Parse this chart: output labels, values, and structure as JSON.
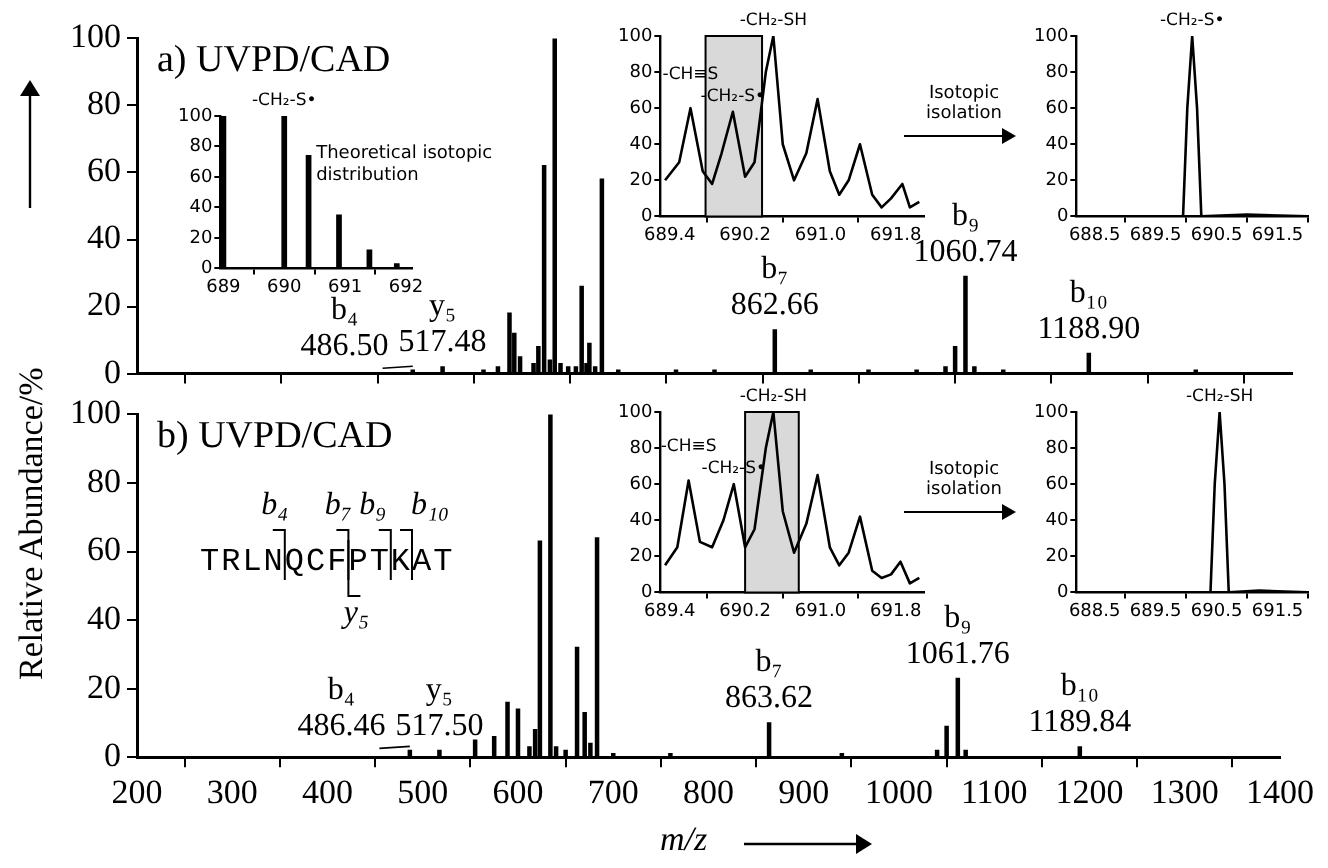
{
  "chart_data": [
    {
      "type": "bar",
      "title": "a) UVPD/CAD",
      "ylabel": "Relative Abundance/%",
      "color": "#000000",
      "x": [
        486.5,
        517.48,
        560,
        575,
        587,
        592,
        598,
        612,
        617,
        623,
        629,
        634,
        640,
        648,
        656,
        662,
        667,
        670,
        676,
        683,
        700,
        760,
        800,
        862.66,
        900,
        960,
        1010,
        1040,
        1050,
        1060.74,
        1070,
        1100,
        1188.9,
        1300
      ],
      "values": [
        1,
        2,
        1,
        2,
        18,
        12,
        5,
        3,
        8,
        62,
        4,
        100,
        3,
        2,
        2,
        26,
        3,
        9,
        2,
        58,
        1,
        1,
        1,
        13,
        1,
        1,
        1,
        2,
        8,
        29,
        2,
        1,
        6,
        1
      ],
      "xlim": [
        200,
        1400
      ],
      "ylim": [
        0,
        100
      ],
      "xticks": [
        200,
        300,
        400,
        500,
        600,
        700,
        800,
        900,
        1000,
        1100,
        1200,
        1300,
        1400
      ],
      "yticks": [
        0,
        20,
        40,
        60,
        80,
        100
      ],
      "tick_labels": "y",
      "legend": false,
      "grid": false,
      "annotations": [
        {
          "text": "b₄",
          "x": 486.5,
          "y": 1
        },
        {
          "text": "486.50",
          "x": 486.5,
          "y": 1
        },
        {
          "text": "y₅",
          "x": 517.48,
          "y": 2
        },
        {
          "text": "517.48",
          "x": 517.48,
          "y": 2
        },
        {
          "text": "b₇",
          "x": 862.66,
          "y": 13
        },
        {
          "text": "862.66",
          "x": 862.66,
          "y": 13
        },
        {
          "text": "b₉",
          "x": 1060.74,
          "y": 29
        },
        {
          "text": "1060.74",
          "x": 1060.74,
          "y": 29
        },
        {
          "text": "b₁₀",
          "x": 1188.9,
          "y": 6
        },
        {
          "text": "1188.90",
          "x": 1188.9,
          "y": 6
        }
      ]
    },
    {
      "type": "bar",
      "title": "b) UVPD/CAD",
      "xlabel": "m/z",
      "color": "#000000",
      "x": [
        486.46,
        517.5,
        555,
        575,
        589,
        600,
        612,
        618,
        623,
        634,
        640,
        650,
        662,
        670,
        676,
        683,
        700,
        760,
        863.62,
        940,
        1040,
        1050,
        1061.76,
        1070,
        1189.84
      ],
      "values": [
        2,
        2,
        5,
        6,
        16,
        14,
        3,
        8,
        63,
        100,
        3,
        2,
        32,
        13,
        4,
        64,
        1,
        1,
        10,
        1,
        2,
        9,
        23,
        2,
        3
      ],
      "xlim": [
        200,
        1400
      ],
      "ylim": [
        0,
        100
      ],
      "xticks": [
        200,
        300,
        400,
        500,
        600,
        700,
        800,
        900,
        1000,
        1100,
        1200,
        1300,
        1400
      ],
      "yticks": [
        0,
        20,
        40,
        60,
        80,
        100
      ],
      "legend": false,
      "grid": false,
      "annotations": [
        "TRLNQCFPTKAT",
        "b₄",
        "b₇",
        "b₉",
        "b₁₀",
        "y₅",
        {
          "text": "b₄",
          "x": 486.46,
          "y": 2
        },
        {
          "text": "486.46",
          "x": 486.46,
          "y": 2
        },
        {
          "text": "y₅",
          "x": 517.5,
          "y": 2
        },
        {
          "text": "517.50",
          "x": 517.5,
          "y": 2
        },
        {
          "text": "b₇",
          "x": 863.62,
          "y": 10
        },
        {
          "text": "863.62",
          "x": 863.62,
          "y": 10
        },
        {
          "text": "b₉",
          "x": 1061.76,
          "y": 23
        },
        {
          "text": "1061.76",
          "x": 1061.76,
          "y": 23
        },
        {
          "text": "b₁₀",
          "x": 1189.84,
          "y": 3
        },
        {
          "text": "1189.84",
          "x": 1189.84,
          "y": 3
        }
      ]
    },
    {
      "type": "bar",
      "color": "#000000",
      "x": [
        689.0,
        690.0,
        690.4,
        690.9,
        691.4,
        691.85
      ],
      "values": [
        100,
        100,
        74,
        35,
        12,
        3
      ],
      "xlim": [
        688.95,
        692.1
      ],
      "ylim": [
        0,
        100
      ],
      "xticks": [
        689,
        690,
        691,
        692
      ],
      "yticks": [
        0,
        20,
        40,
        60,
        80,
        100
      ],
      "legend": false,
      "grid": false,
      "annotations": [
        "Theoretical isotopic distribution",
        {
          "text": "-CH₂-S•",
          "x": 690.0,
          "y": 100
        }
      ]
    },
    {
      "type": "line",
      "color": "#000000",
      "marker": "none",
      "x": [
        689.35,
        689.5,
        689.62,
        689.75,
        689.85,
        689.95,
        690.07,
        690.2,
        690.3,
        690.42,
        690.5,
        690.6,
        690.72,
        690.85,
        690.97,
        691.1,
        691.2,
        691.3,
        691.42,
        691.55,
        691.65,
        691.75,
        691.87,
        691.95,
        692.05
      ],
      "values": [
        20,
        30,
        60,
        25,
        18,
        35,
        58,
        22,
        30,
        80,
        100,
        40,
        20,
        35,
        65,
        25,
        12,
        20,
        40,
        12,
        5,
        10,
        18,
        5,
        8
      ],
      "xlim": [
        689.3,
        692.1
      ],
      "ylim": [
        0,
        100
      ],
      "xticks": [
        689.4,
        690.2,
        {
          "value": 691,
          "label": "691.0"
        },
        691.8
      ],
      "yticks": [
        0,
        20,
        40,
        60,
        80,
        100
      ],
      "legend": false,
      "grid": false,
      "bands": [
        {
          "axis": "x",
          "from": 689.78,
          "to": 690.38,
          "color": "#d9d9d9"
        }
      ],
      "annotations": [
        {
          "text": "-CH≡S",
          "x": 689.62,
          "y": 60
        },
        {
          "text": "-CH₂-S•",
          "x": 690.07,
          "y": 58
        },
        {
          "text": "-CH₂-SH",
          "x": 690.5,
          "y": 100
        }
      ]
    },
    {
      "type": "line",
      "color": "#000000",
      "marker": "none",
      "x": [
        688.2,
        689.5,
        689.95,
        690.02,
        690.1,
        690.18,
        690.25,
        691.0,
        692.0
      ],
      "values": [
        0,
        0,
        0,
        60,
        100,
        60,
        0,
        1,
        0
      ],
      "xlim": [
        688.2,
        692.0
      ],
      "ylim": [
        0,
        100
      ],
      "xticks": [
        688.5,
        689.5,
        690.5,
        691.5
      ],
      "yticks": [
        0,
        20,
        40,
        60,
        80,
        100
      ],
      "legend": false,
      "grid": false,
      "annotations": [
        "Isotopic isolation",
        {
          "text": "-CH₂-S•",
          "x": 690.1,
          "y": 100
        }
      ]
    },
    {
      "type": "line",
      "color": "#000000",
      "marker": "none",
      "x": [
        689.35,
        689.48,
        689.6,
        689.72,
        689.85,
        689.97,
        690.08,
        690.2,
        690.3,
        690.42,
        690.5,
        690.6,
        690.72,
        690.85,
        690.97,
        691.1,
        691.2,
        691.3,
        691.42,
        691.55,
        691.65,
        691.75,
        691.85,
        691.95,
        692.05
      ],
      "values": [
        15,
        25,
        62,
        28,
        25,
        40,
        60,
        25,
        35,
        80,
        100,
        45,
        22,
        38,
        65,
        25,
        15,
        22,
        42,
        12,
        8,
        10,
        17,
        5,
        8
      ],
      "xlim": [
        689.3,
        692.1
      ],
      "ylim": [
        0,
        100
      ],
      "xticks": [
        689.4,
        690.2,
        {
          "value": 691,
          "label": "691.0"
        },
        691.8
      ],
      "yticks": [
        0,
        20,
        40,
        60,
        80,
        100
      ],
      "legend": false,
      "grid": false,
      "bands": [
        {
          "axis": "x",
          "from": 690.2,
          "to": 690.77,
          "color": "#d9d9d9"
        }
      ],
      "annotations": [
        {
          "text": "-CH≡S",
          "x": 689.6,
          "y": 62
        },
        {
          "text": "-CH₂-S•",
          "x": 690.08,
          "y": 60
        },
        {
          "text": "-CH₂-SH",
          "x": 690.5,
          "y": 100
        }
      ]
    },
    {
      "type": "line",
      "color": "#000000",
      "marker": "none",
      "x": [
        688.2,
        689.5,
        690.4,
        690.47,
        690.55,
        690.63,
        690.7,
        691.2,
        692.0
      ],
      "values": [
        0,
        0,
        0,
        60,
        100,
        60,
        0,
        1,
        0
      ],
      "xlim": [
        688.2,
        692.0
      ],
      "ylim": [
        0,
        100
      ],
      "xticks": [
        688.5,
        689.5,
        690.5,
        691.5
      ],
      "yticks": [
        0,
        20,
        40,
        60,
        80,
        100
      ],
      "legend": false,
      "grid": false,
      "annotations": [
        "Isotopic isolation",
        {
          "text": "-CH₂-SH",
          "x": 690.55,
          "y": 100
        }
      ]
    }
  ]
}
